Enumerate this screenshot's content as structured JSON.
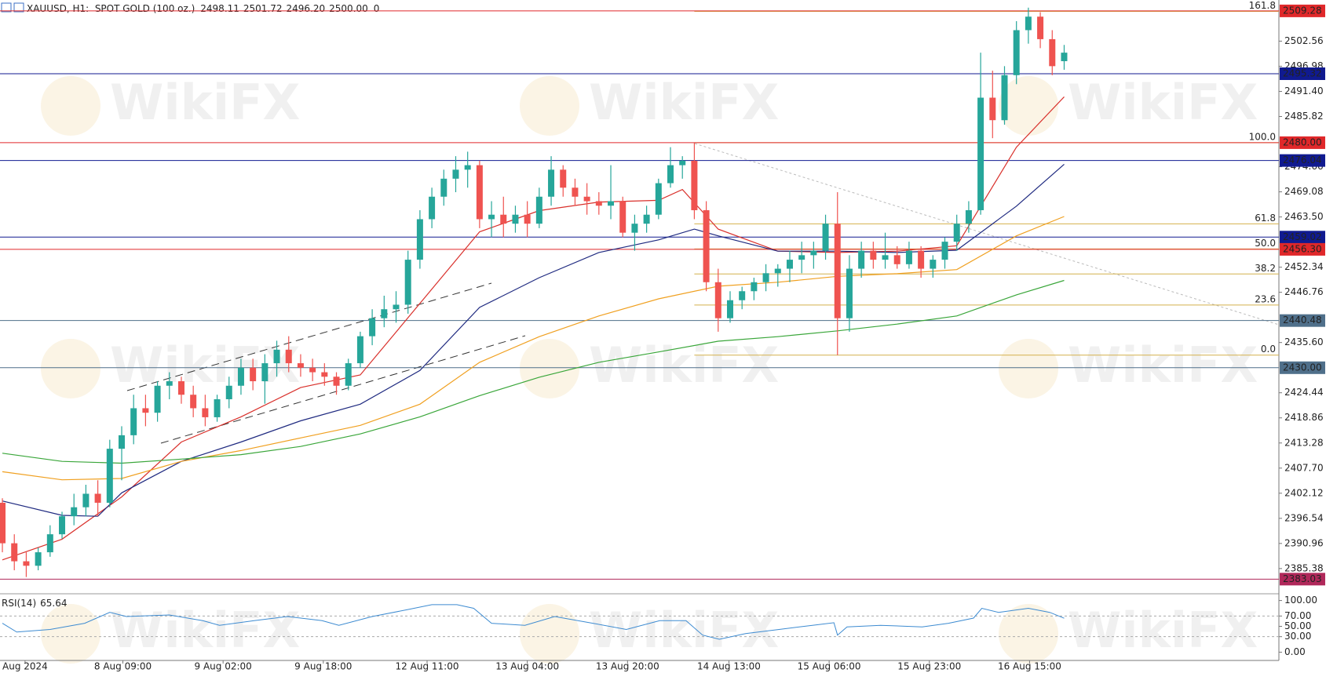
{
  "watermark": "WikiFX",
  "chart_data": {
    "type": "candlestick",
    "symbol": "XAUUSD, H1:  SPOT GOLD (100 oz.)",
    "last_ohlc_labels": [
      "2498.11",
      "2501.72",
      "2496.20",
      "2500.00"
    ],
    "volume": 0,
    "up_color": "#26a69a",
    "down_color": "#ef5350",
    "grid": false,
    "xlim": [
      -0.2,
      107
    ],
    "ylim": [
      2380.3,
      2511.7
    ],
    "xticks": [
      {
        "value": 1.9,
        "label": "Aug 2024"
      },
      {
        "value": 10.1,
        "label": "8 Aug 09:00"
      },
      {
        "value": 18.5,
        "label": "9 Aug 02:00"
      },
      {
        "value": 26.9,
        "label": "9 Aug 18:00"
      },
      {
        "value": 35.6,
        "label": "12 Aug 11:00"
      },
      {
        "value": 44,
        "label": "13 Aug 04:00"
      },
      {
        "value": 52.4,
        "label": "13 Aug 20:00"
      },
      {
        "value": 60.9,
        "label": "14 Aug 13:00"
      },
      {
        "value": 69.3,
        "label": "15 Aug 06:00"
      },
      {
        "value": 77.7,
        "label": "15 Aug 23:00"
      },
      {
        "value": 86.1,
        "label": "16 Aug 15:00"
      }
    ],
    "yticks": [
      2502.56,
      2496.98,
      {
        "value": 2491.4,
        "label": "2491.40"
      },
      2485.82,
      2474.66,
      2469.08,
      {
        "value": 2463.5,
        "label": "2463.50"
      },
      2452.34,
      2446.76,
      {
        "value": 2435.6,
        "label": "2435.60"
      },
      2424.44,
      2418.86,
      2413.28,
      {
        "value": 2407.7,
        "label": "2407.70"
      },
      2402.12,
      2396.54,
      2390.96,
      2385.38
    ],
    "candles": [
      [
        2400,
        2401,
        2389,
        2391
      ],
      [
        2391,
        2393,
        2385,
        2387
      ],
      [
        2387,
        2389,
        2383.5,
        2386
      ],
      [
        2386,
        2390,
        2385,
        2389
      ],
      [
        2389,
        2395,
        2388,
        2393
      ],
      [
        2393,
        2398,
        2392,
        2397
      ],
      [
        2397,
        2402,
        2395,
        2399
      ],
      [
        2399,
        2404,
        2397,
        2402
      ],
      [
        2402,
        2405,
        2397,
        2400
      ],
      [
        2400,
        2414,
        2399,
        2412
      ],
      [
        2412,
        2417,
        2405,
        2415
      ],
      [
        2415,
        2424,
        2413,
        2421
      ],
      [
        2421,
        2424,
        2417,
        2420
      ],
      [
        2420,
        2427,
        2418,
        2426
      ],
      [
        2426,
        2429,
        2423,
        2427
      ],
      [
        2427,
        2428,
        2422,
        2424
      ],
      [
        2424,
        2426,
        2419,
        2421
      ],
      [
        2421,
        2424,
        2417,
        2419
      ],
      [
        2419,
        2424,
        2418,
        2423
      ],
      [
        2423,
        2428,
        2421,
        2426
      ],
      [
        2426,
        2432,
        2424,
        2430
      ],
      [
        2430,
        2432,
        2425,
        2427
      ],
      [
        2427,
        2433,
        2422,
        2431
      ],
      [
        2431,
        2436,
        2428,
        2434
      ],
      [
        2434,
        2437,
        2429,
        2431
      ],
      [
        2431,
        2433,
        2428,
        2430
      ],
      [
        2430,
        2432,
        2427,
        2429
      ],
      [
        2429,
        2431,
        2426,
        2428
      ],
      [
        2428,
        2429,
        2424,
        2426
      ],
      [
        2426,
        2432,
        2425,
        2431
      ],
      [
        2431,
        2438,
        2430,
        2437
      ],
      [
        2437,
        2443,
        2435,
        2441
      ],
      [
        2441,
        2446,
        2439,
        2443
      ],
      [
        2443,
        2447,
        2440,
        2444
      ],
      [
        2444,
        2456,
        2442,
        2454
      ],
      [
        2454,
        2465,
        2452,
        2463
      ],
      [
        2463,
        2470,
        2461,
        2468
      ],
      [
        2468,
        2474,
        2466,
        2472
      ],
      [
        2472,
        2477,
        2469,
        2474
      ],
      [
        2474,
        2478,
        2470,
        2475
      ],
      [
        2475,
        2476,
        2461,
        2463
      ],
      [
        2463,
        2467,
        2459,
        2464
      ],
      [
        2464,
        2468,
        2459,
        2462
      ],
      [
        2462,
        2466,
        2460,
        2464
      ],
      [
        2464,
        2467,
        2459,
        2462
      ],
      [
        2462,
        2470,
        2461,
        2468
      ],
      [
        2468,
        2477,
        2466,
        2474
      ],
      [
        2474,
        2475,
        2468,
        2470
      ],
      [
        2470,
        2472,
        2466,
        2468
      ],
      [
        2468,
        2471,
        2464,
        2467
      ],
      [
        2467,
        2469,
        2464,
        2466
      ],
      [
        2466,
        2475,
        2463,
        2467
      ],
      [
        2467,
        2468,
        2459,
        2460
      ],
      [
        2460,
        2464,
        2456,
        2462
      ],
      [
        2462,
        2466,
        2460,
        2464
      ],
      [
        2464,
        2472,
        2463,
        2471
      ],
      [
        2471,
        2479,
        2470,
        2475
      ],
      [
        2475,
        2477,
        2472,
        2476
      ],
      [
        2476,
        2480,
        2463,
        2465
      ],
      [
        2465,
        2467,
        2447,
        2449
      ],
      [
        2449,
        2452,
        2438,
        2441
      ],
      [
        2441,
        2447,
        2440,
        2445
      ],
      [
        2445,
        2448,
        2443,
        2447
      ],
      [
        2447,
        2450,
        2445,
        2449
      ],
      [
        2449,
        2453,
        2447,
        2451
      ],
      [
        2451,
        2453,
        2448,
        2452
      ],
      [
        2452,
        2456,
        2449,
        2454
      ],
      [
        2454,
        2458,
        2451,
        2455
      ],
      [
        2455,
        2458,
        2452,
        2456
      ],
      [
        2456,
        2464,
        2454,
        2462
      ],
      [
        2462,
        2469,
        2432.8,
        2441
      ],
      [
        2441,
        2455,
        2438,
        2452
      ],
      [
        2452,
        2458,
        2450,
        2456
      ],
      [
        2456,
        2458,
        2452,
        2454
      ],
      [
        2454,
        2460,
        2452,
        2455
      ],
      [
        2455,
        2457,
        2452,
        2453
      ],
      [
        2453,
        2458,
        2452,
        2456
      ],
      [
        2456,
        2457,
        2450,
        2452
      ],
      [
        2452,
        2455,
        2450,
        2454
      ],
      [
        2454,
        2459,
        2452,
        2458
      ],
      [
        2458,
        2464,
        2456,
        2462
      ],
      [
        2462,
        2467,
        2460,
        2465
      ],
      [
        2465,
        2500,
        2464,
        2490
      ],
      [
        2490,
        2496,
        2481,
        2485
      ],
      [
        2485,
        2497,
        2484,
        2495
      ],
      [
        2495,
        2507,
        2493,
        2505
      ],
      [
        2505,
        2510,
        2502,
        2508
      ],
      [
        2508,
        2509,
        2501,
        2503
      ],
      [
        2503,
        2505,
        2495,
        2497
      ],
      [
        2498.11,
        2501.72,
        2496.2,
        2500
      ]
    ],
    "moving_averages": [
      {
        "color": "#d9302b",
        "x": [
          0,
          5,
          10,
          15,
          20,
          25,
          30,
          35,
          40,
          45,
          50,
          55,
          57,
          60,
          65,
          70,
          75,
          80,
          85,
          89
        ],
        "values": [
          2387.3,
          2391.9,
          2401.3,
          2413.5,
          2419.1,
          2425.6,
          2428.4,
          2444.3,
          2460.2,
          2464.9,
          2466.8,
          2467.2,
          2469.6,
          2460.8,
          2455.9,
          2455.6,
          2455.9,
          2457.1,
          2479.0,
          2490.2
        ]
      },
      {
        "color": "#1f2a80",
        "x": [
          0,
          5,
          8,
          10,
          15,
          20,
          25,
          30,
          35,
          40,
          45,
          50,
          55,
          58,
          60,
          65,
          70,
          75,
          80,
          85,
          89
        ],
        "values": [
          2400.4,
          2397.2,
          2397.0,
          2402.2,
          2409.2,
          2413.5,
          2418.2,
          2421.9,
          2429.4,
          2443.4,
          2450.0,
          2455.6,
          2458.4,
          2460.8,
          2459.3,
          2455.9,
          2455.9,
          2455.6,
          2456.1,
          2465.9,
          2475.2
        ]
      },
      {
        "color": "#f0a020",
        "x": [
          0,
          5,
          10,
          15,
          20,
          25,
          30,
          35,
          40,
          45,
          50,
          55,
          60,
          65,
          70,
          75,
          80,
          85,
          89
        ],
        "values": [
          2406.9,
          2405.1,
          2405.4,
          2409.2,
          2411.6,
          2414.4,
          2417.2,
          2421.9,
          2431.2,
          2436.9,
          2441.5,
          2445.3,
          2448.1,
          2449.0,
          2450.3,
          2450.9,
          2451.8,
          2459.3,
          2463.6
        ]
      },
      {
        "color": "#3aa63a",
        "x": [
          0,
          5,
          10,
          15,
          20,
          25,
          30,
          35,
          40,
          45,
          50,
          55,
          60,
          65,
          70,
          75,
          80,
          85,
          89
        ],
        "values": [
          2411.0,
          2409.2,
          2408.8,
          2409.7,
          2410.7,
          2412.5,
          2415.3,
          2419.1,
          2423.8,
          2427.9,
          2431.2,
          2433.5,
          2435.9,
          2436.9,
          2438.2,
          2439.7,
          2441.5,
          2446.2,
          2449.4
        ]
      }
    ],
    "levels": [
      {
        "price": 2509.28,
        "color": "#e0282a"
      },
      {
        "price": 2495.32,
        "color": "#101a90"
      },
      {
        "price": 2480,
        "price_label": "2480.00",
        "color": "#e0282a"
      },
      {
        "price": 2476.04,
        "color": "#101a90"
      },
      {
        "price": 2459.02,
        "color": "#101a90"
      },
      {
        "price": 2456.3,
        "price_label": "2456.30",
        "color": "#e0282a"
      },
      {
        "price": 2440.48,
        "color": "#4f6f8a"
      },
      {
        "price": 2430,
        "price_label": "2430.00",
        "color": "#4f6f8a"
      },
      {
        "price": 2383.03,
        "color": "#b0285a"
      }
    ],
    "fibonacci": {
      "high": 2480,
      "low": 2432.8,
      "color": "#d4b04c",
      "levels": [
        161.8,
        {
          "value": 100,
          "label": "100.0"
        },
        61.8,
        {
          "value": 50,
          "label": "50.0"
        },
        38.2,
        23.6,
        {
          "value": 0,
          "label": "0.0"
        }
      ]
    },
    "rsi": {
      "title": "RSI(14)",
      "color": "#3d8bd1",
      "ylim": [
        -13,
        110
      ],
      "yticks": [
        {
          "value": 100,
          "label": "100.00"
        },
        {
          "value": 70,
          "label": "70.00",
          "dashed": true
        },
        {
          "value": 50,
          "label": "50.00"
        },
        {
          "value": 30,
          "label": "30.00",
          "dashed": true
        },
        {
          "value": 0,
          "label": "0.00"
        }
      ],
      "x": [
        0,
        1.2,
        4,
        6.9,
        9,
        10.4,
        14,
        16.8,
        18.2,
        21.1,
        23.9,
        26.8,
        28.2,
        31,
        33.9,
        36,
        38.1,
        39.5,
        41,
        43.8,
        46.3,
        49.5,
        52.3,
        55.1,
        57.3,
        58.7,
        60.1,
        62.3,
        65.1,
        67.9,
        69.7,
        70,
        70.8,
        73.6,
        77.1,
        79.3,
        81.4,
        82.1,
        83.5,
        86,
        87.8,
        89
      ],
      "values": [
        56,
        39,
        44,
        56,
        77,
        69,
        72,
        61,
        52,
        61,
        69,
        61,
        52,
        69,
        82,
        92,
        92,
        85,
        56,
        52,
        69,
        56,
        44,
        61,
        61,
        33,
        25,
        36,
        44,
        52,
        57,
        33,
        49,
        52,
        49,
        56,
        66,
        85,
        77,
        85,
        77,
        65.64
      ]
    }
  }
}
